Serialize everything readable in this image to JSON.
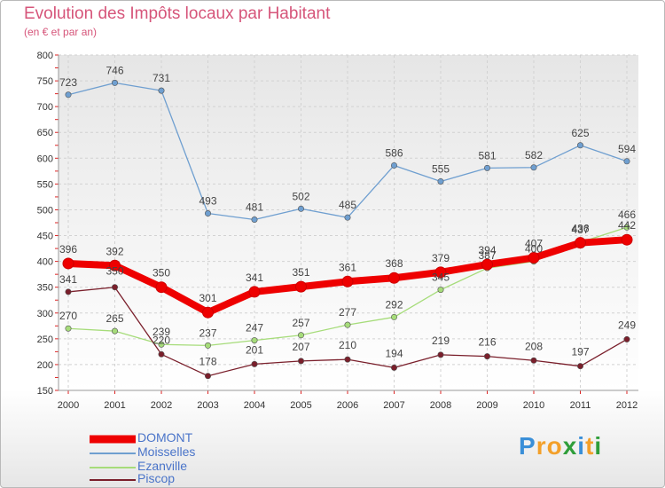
{
  "title": "Evolution des Impôts locaux par Habitant",
  "subtitle": "(en € et par an)",
  "brand": {
    "letters": [
      "P",
      "r",
      "o",
      "x",
      "i",
      "t",
      "i"
    ],
    "colors": [
      "#3a8fd8",
      "#f3a02a",
      "#f3a02a",
      "#2f9e3a",
      "#3a8fd8",
      "#f3a02a",
      "#2f9e3a"
    ]
  },
  "chart_data": {
    "type": "line",
    "title": "Evolution des Impôts locaux par Habitant",
    "subtitle": "(en € et par an)",
    "x": [
      "2000",
      "2001",
      "2002",
      "2003",
      "2004",
      "2005",
      "2006",
      "2007",
      "2008",
      "2009",
      "2010",
      "2011",
      "2012"
    ],
    "ylim": [
      150,
      800
    ],
    "yticks": [
      150,
      200,
      250,
      300,
      350,
      400,
      450,
      500,
      550,
      600,
      650,
      700,
      750,
      800
    ],
    "grid": true,
    "legend": "bottom-left",
    "series": [
      {
        "name": "DOMONT",
        "color": "#ee0000",
        "values": [
          396,
          392,
          350,
          301,
          341,
          351,
          361,
          368,
          379,
          394,
          407,
          436,
          442
        ]
      },
      {
        "name": "Moisselles",
        "color": "#6f9fd0",
        "values": [
          723,
          746,
          731,
          493,
          481,
          502,
          485,
          586,
          555,
          581,
          582,
          625,
          594
        ]
      },
      {
        "name": "Ezanville",
        "color": "#a6dc7a",
        "values": [
          270,
          265,
          239,
          237,
          247,
          257,
          277,
          292,
          345,
          387,
          400,
          437,
          466
        ]
      },
      {
        "name": "Piscop",
        "color": "#7a1f2b",
        "values": [
          341,
          350,
          220,
          178,
          201,
          207,
          210,
          194,
          219,
          216,
          208,
          197,
          249
        ]
      }
    ]
  }
}
